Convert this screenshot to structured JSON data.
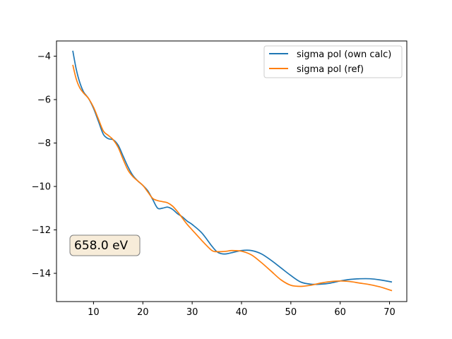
{
  "chart_data": {
    "type": "line",
    "xlim": [
      2.5,
      73.5
    ],
    "ylim": [
      -15.3,
      -3.3
    ],
    "xticks": [
      10,
      20,
      30,
      40,
      50,
      60,
      70
    ],
    "yticks": [
      -14,
      -12,
      -10,
      -8,
      -6,
      -4
    ],
    "ytick_labels": [
      "−14",
      "−12",
      "−10",
      "−8",
      "−6",
      "−4"
    ],
    "grid": false,
    "legend_position": "upper-right",
    "annotation": "658.0 eV",
    "series": [
      {
        "name": "sigma pol (own calc)",
        "color": "#1f77b4",
        "x": [
          5.8,
          6.5,
          7.2,
          8.0,
          9.0,
          10.0,
          11.0,
          12.0,
          13.0,
          14.0,
          15.0,
          16.0,
          17.0,
          18.0,
          19.0,
          20.0,
          21.0,
          22.0,
          23.0,
          24.0,
          25.0,
          26.0,
          27.0,
          28.0,
          29.0,
          30.0,
          32.0,
          34.0,
          35.0,
          36.0,
          37.0,
          38.0,
          40.0,
          42.0,
          44.0,
          46.0,
          48.0,
          50.0,
          52.0,
          54.0,
          56.0,
          58.0,
          60.0,
          62.0,
          64.0,
          66.0,
          68.0,
          70.5
        ],
        "y": [
          -3.75,
          -4.6,
          -5.2,
          -5.65,
          -5.95,
          -6.4,
          -7.0,
          -7.6,
          -7.8,
          -7.85,
          -8.1,
          -8.6,
          -9.1,
          -9.5,
          -9.75,
          -9.95,
          -10.2,
          -10.6,
          -11.0,
          -11.0,
          -10.95,
          -11.05,
          -11.25,
          -11.4,
          -11.6,
          -11.75,
          -12.15,
          -12.75,
          -13.0,
          -13.1,
          -13.1,
          -13.05,
          -12.95,
          -12.95,
          -13.1,
          -13.4,
          -13.75,
          -14.1,
          -14.4,
          -14.5,
          -14.5,
          -14.45,
          -14.35,
          -14.28,
          -14.25,
          -14.25,
          -14.3,
          -14.4
        ]
      },
      {
        "name": "sigma pol (ref)",
        "color": "#ff7f0e",
        "x": [
          5.8,
          6.5,
          7.2,
          8.0,
          9.0,
          10.0,
          11.0,
          12.0,
          13.0,
          14.0,
          15.0,
          16.0,
          17.0,
          18.0,
          19.0,
          20.0,
          21.0,
          22.0,
          23.0,
          24.0,
          25.0,
          26.0,
          27.0,
          28.0,
          29.0,
          30.0,
          32.0,
          34.0,
          35.0,
          36.0,
          37.0,
          38.0,
          40.0,
          42.0,
          44.0,
          46.0,
          48.0,
          50.0,
          52.0,
          54.0,
          56.0,
          58.0,
          60.0,
          62.0,
          64.0,
          66.0,
          68.0,
          70.5
        ],
        "y": [
          -4.4,
          -5.05,
          -5.45,
          -5.7,
          -5.95,
          -6.35,
          -6.9,
          -7.45,
          -7.65,
          -7.85,
          -8.2,
          -8.75,
          -9.25,
          -9.55,
          -9.75,
          -9.95,
          -10.25,
          -10.55,
          -10.65,
          -10.7,
          -10.75,
          -10.9,
          -11.15,
          -11.45,
          -11.75,
          -12.0,
          -12.5,
          -12.95,
          -13.0,
          -13.0,
          -12.98,
          -12.95,
          -12.98,
          -13.15,
          -13.5,
          -13.9,
          -14.3,
          -14.55,
          -14.6,
          -14.55,
          -14.45,
          -14.38,
          -14.35,
          -14.38,
          -14.45,
          -14.52,
          -14.62,
          -14.8
        ]
      }
    ]
  }
}
